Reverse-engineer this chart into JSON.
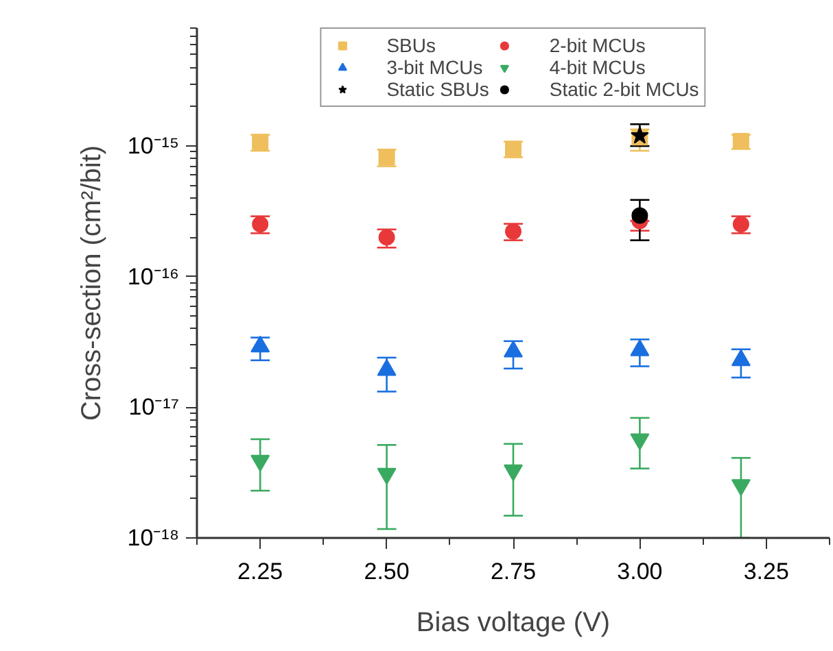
{
  "chart_data": {
    "type": "scatter",
    "xlabel": "Bias voltage (V)",
    "ylabel": "Cross-section (cm²/bit)",
    "log": "y",
    "grid": false,
    "legend": "top",
    "xlim": [
      2.125,
      3.375
    ],
    "xticks": [
      2.25,
      {
        "value": 2.5,
        "label": "2.50"
      },
      2.75,
      {
        "value": 3.0,
        "label": "3.00"
      },
      3.25
    ],
    "ylim": [
      1e-18,
      8e-15
    ],
    "yticks": [
      {
        "value": 1e-18,
        "label": "10⁻¹⁸"
      },
      {
        "value": 1e-17,
        "label": "10⁻¹⁷"
      },
      {
        "value": 1e-16,
        "label": "10⁻¹⁶"
      },
      {
        "value": 1e-15,
        "label": "10⁻¹⁵"
      }
    ],
    "series": [
      {
        "name": "SBUs",
        "color": "#eebf5c",
        "marker": "square",
        "x": [
          2.25,
          2.5,
          2.75,
          3.0,
          3.2
        ],
        "values": [
          1.07e-15,
          8.2e-16,
          9.5e-16,
          1.17e-15,
          1.09e-15
        ],
        "errors": [
          [
            9.2e-16,
            1.22e-15
          ],
          [
            7e-16,
            9.4e-16
          ],
          [
            8.2e-16,
            1.08e-15
          ],
          [
            9.2e-16,
            1.34e-15
          ],
          [
            9.5e-16,
            1.22e-15
          ]
        ]
      },
      {
        "name": "2-bit MCUs",
        "color": "#e8383a",
        "marker": "circle",
        "x": [
          2.25,
          2.5,
          2.75,
          3.0,
          3.2
        ],
        "values": [
          2.52e-16,
          2e-16,
          2.22e-16,
          2.67e-16,
          2.52e-16
        ],
        "errors": [
          [
            2.15e-16,
            2.9e-16
          ],
          [
            1.67e-16,
            2.3e-16
          ],
          [
            1.9e-16,
            2.54e-16
          ],
          [
            2.25e-16,
            2.67e-16
          ],
          [
            2.15e-16,
            2.9e-16
          ]
        ]
      },
      {
        "name": "3-bit MCUs",
        "color": "#1a6fe0",
        "marker": "triangle",
        "x": [
          2.25,
          2.5,
          2.75,
          3.0,
          3.2
        ],
        "values": [
          2.92e-17,
          1.93e-17,
          2.67e-17,
          2.73e-17,
          2.29e-17
        ],
        "errors": [
          [
            2.29e-17,
            3.42e-17
          ],
          [
            1.32e-17,
            2.4e-17
          ],
          [
            1.98e-17,
            3.21e-17
          ],
          [
            2.06e-17,
            3.31e-17
          ],
          [
            1.69e-17,
            2.78e-17
          ]
        ]
      },
      {
        "name": "4-bit MCUs",
        "color": "#3aaa60",
        "marker": "triangle_down",
        "x": [
          2.25,
          2.5,
          2.75,
          3.0,
          3.2
        ],
        "values": [
          3.9e-18,
          3.1e-18,
          3.3e-18,
          5.7e-18,
          2.54e-18
        ],
        "errors": [
          [
            2.3e-18,
            5.7e-18
          ],
          [
            1.17e-18,
            5.15e-18
          ],
          [
            1.48e-18,
            5.25e-18
          ],
          [
            3.4e-18,
            8.3e-18
          ],
          [
            1e-18,
            4.1e-18
          ]
        ]
      },
      {
        "name": "Static SBUs",
        "color": "#000000",
        "marker": "star",
        "x": [
          3.0
        ],
        "values": [
          1.2e-15
        ],
        "errors": [
          [
            1e-15,
            1.47e-15
          ]
        ]
      },
      {
        "name": "Static 2-bit MCUs",
        "color": "#000000",
        "marker": "circle",
        "x": [
          3.0
        ],
        "values": [
          2.94e-16
        ],
        "errors": [
          [
            1.9e-16,
            3.87e-16
          ]
        ]
      }
    ]
  }
}
